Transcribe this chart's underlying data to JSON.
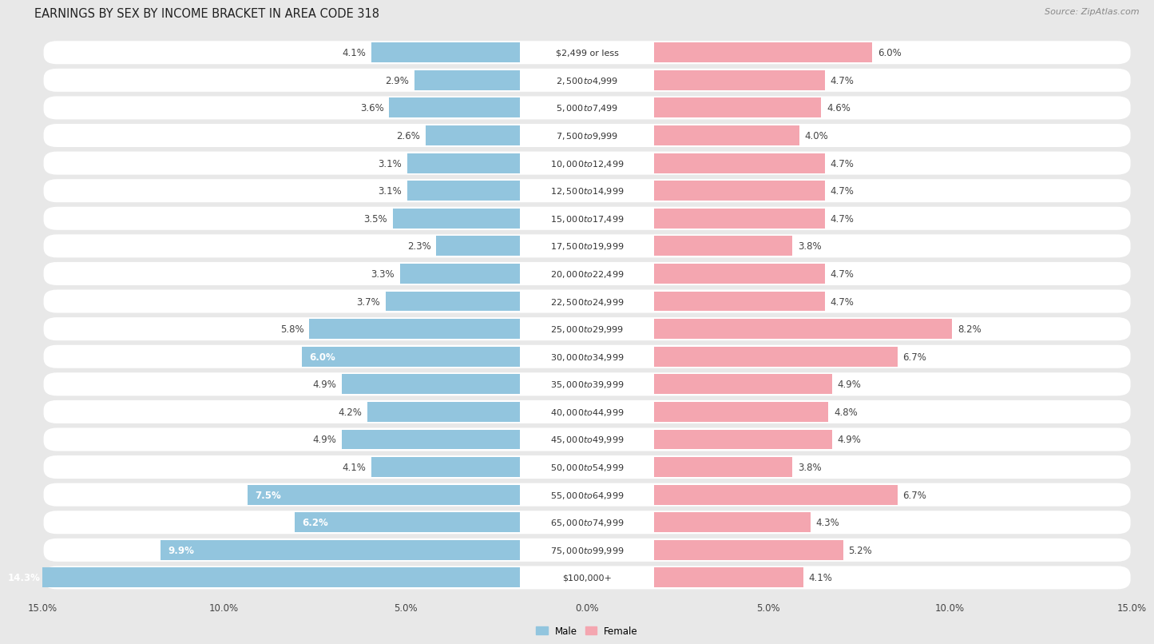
{
  "title": "EARNINGS BY SEX BY INCOME BRACKET IN AREA CODE 318",
  "source": "Source: ZipAtlas.com",
  "categories": [
    "$2,499 or less",
    "$2,500 to $4,999",
    "$5,000 to $7,499",
    "$7,500 to $9,999",
    "$10,000 to $12,499",
    "$12,500 to $14,999",
    "$15,000 to $17,499",
    "$17,500 to $19,999",
    "$20,000 to $22,499",
    "$22,500 to $24,999",
    "$25,000 to $29,999",
    "$30,000 to $34,999",
    "$35,000 to $39,999",
    "$40,000 to $44,999",
    "$45,000 to $49,999",
    "$50,000 to $54,999",
    "$55,000 to $64,999",
    "$65,000 to $74,999",
    "$75,000 to $99,999",
    "$100,000+"
  ],
  "male": [
    4.1,
    2.9,
    3.6,
    2.6,
    3.1,
    3.1,
    3.5,
    2.3,
    3.3,
    3.7,
    5.8,
    6.0,
    4.9,
    4.2,
    4.9,
    4.1,
    7.5,
    6.2,
    9.9,
    14.3
  ],
  "female": [
    6.0,
    4.7,
    4.6,
    4.0,
    4.7,
    4.7,
    4.7,
    3.8,
    4.7,
    4.7,
    8.2,
    6.7,
    4.9,
    4.8,
    4.9,
    3.8,
    6.7,
    4.3,
    5.2,
    4.1
  ],
  "male_color": "#92C5DE",
  "female_color": "#F4A6B0",
  "bg_color": "#E8E8E8",
  "bar_bg_color": "#FFFFFF",
  "axis_max": 15.0,
  "legend_male": "Male",
  "legend_female": "Female",
  "title_fontsize": 10.5,
  "label_fontsize": 8.5,
  "category_fontsize": 8,
  "source_fontsize": 8,
  "tick_fontsize": 8.5
}
